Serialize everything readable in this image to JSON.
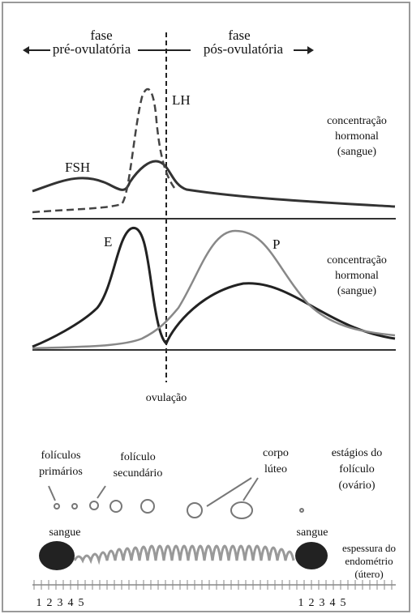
{
  "phases": {
    "pre": {
      "line1": "fase",
      "line2": "pré-ovulatória"
    },
    "post": {
      "line1": "fase",
      "line2": "pós-ovulatória"
    }
  },
  "panel1": {
    "curves": {
      "lh": "LH",
      "fsh": "FSH"
    },
    "label": [
      "concentração",
      "hormonal",
      "(sangue)"
    ]
  },
  "panel2": {
    "curves": {
      "e": "E",
      "p": "P"
    },
    "label": [
      "concentração",
      "hormonal",
      "(sangue)"
    ]
  },
  "ovulation": "ovulação",
  "ovary": {
    "primary": [
      "folículos",
      "primários"
    ],
    "secondary": [
      "folículo",
      "secundário"
    ],
    "corpus": [
      "corpo",
      "lúteo"
    ],
    "label": [
      "estágios do",
      "folículo",
      "(ovário)"
    ]
  },
  "uterus": {
    "blood_left": "sangue",
    "blood_right": "sangue",
    "label": [
      "espessura do",
      "endométrio",
      "(útero)"
    ],
    "days_left": [
      1,
      2,
      3,
      4,
      5
    ],
    "days_right": [
      1,
      2,
      3,
      4,
      5
    ]
  }
}
